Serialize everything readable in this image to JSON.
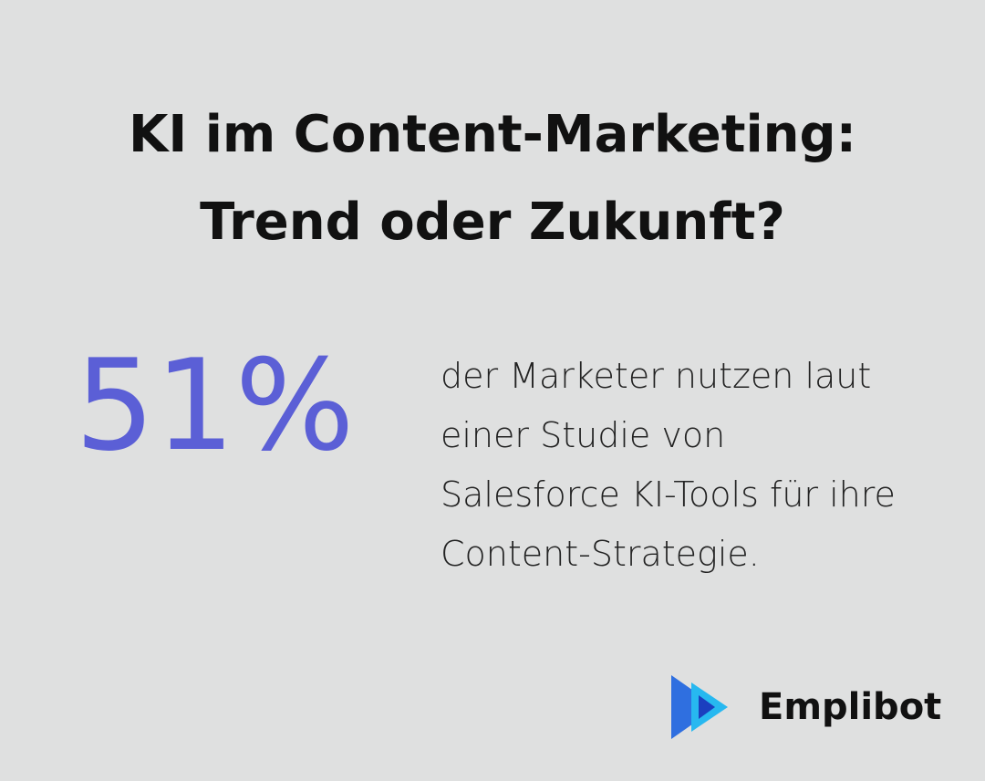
{
  "title": "KI im Content-Marketing: Trend oder Zukunft?",
  "stat": {
    "value": "51%",
    "text": "der Marketer nutzen laut einer Studie von Salesforce KI-Tools für ihre Content-Strategie."
  },
  "brand": "Emplibot"
}
